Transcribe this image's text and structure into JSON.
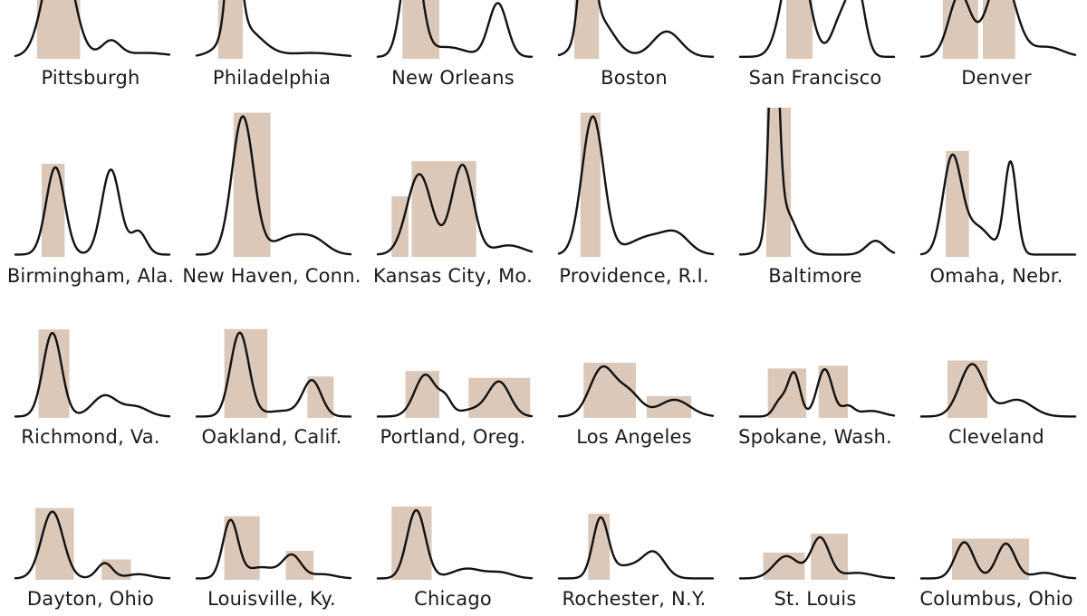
{
  "chart_data": {
    "type": "small-multiples-line",
    "x_domain": [
      0,
      100
    ],
    "y_domain": [
      0,
      100
    ],
    "colors": {
      "band": "#dcc8b8",
      "line": "#111111",
      "text": "#1a1a1a"
    },
    "panels": [
      {
        "label": "Pittsburgh",
        "peaks": [
          [
            28,
            9,
            120
          ],
          [
            62,
            6,
            16
          ],
          [
            85,
            14,
            4
          ]
        ],
        "bands": [
          [
            14,
            42
          ]
        ]
      },
      {
        "label": "Philadelphia",
        "peaks": [
          [
            24,
            4,
            130
          ],
          [
            30,
            12,
            30
          ],
          [
            75,
            15,
            4
          ]
        ],
        "bands": [
          [
            14,
            30
          ]
        ]
      },
      {
        "label": "New Orleans",
        "peaks": [
          [
            22,
            6,
            120
          ],
          [
            45,
            12,
            10
          ],
          [
            78,
            6,
            55
          ]
        ],
        "bands": [
          [
            16,
            40
          ]
        ]
      },
      {
        "label": "Boston",
        "peaks": [
          [
            18,
            4,
            130
          ],
          [
            25,
            10,
            40
          ],
          [
            70,
            9,
            26
          ]
        ],
        "bands": [
          [
            10,
            26
          ]
        ]
      },
      {
        "label": "San Francisco",
        "peaks": [
          [
            36,
            8,
            115
          ],
          [
            66,
            6,
            40
          ],
          [
            76,
            5,
            68
          ]
        ],
        "bands": [
          [
            30,
            47
          ]
        ]
      },
      {
        "label": "Denver",
        "peaks": [
          [
            25,
            7,
            64
          ],
          [
            52,
            9,
            85
          ],
          [
            82,
            10,
            10
          ]
        ],
        "bands": [
          [
            14,
            37
          ],
          [
            40,
            61
          ]
        ]
      },
      {
        "label": "Birmingham, Ala.",
        "peaks": [
          [
            26,
            6,
            76
          ],
          [
            62,
            6,
            74
          ],
          [
            80,
            5,
            20
          ]
        ],
        "bands": [
          [
            17,
            32
          ]
        ]
      },
      {
        "label": "New Haven, Conn.",
        "peaks": [
          [
            30,
            7,
            120
          ],
          [
            62,
            12,
            16
          ],
          [
            78,
            8,
            8
          ]
        ],
        "bands": [
          [
            24,
            48
          ]
        ]
      },
      {
        "label": "Kansas City, Mo.",
        "peaks": [
          [
            27,
            8,
            70
          ],
          [
            55,
            7,
            78
          ],
          [
            85,
            10,
            8
          ]
        ],
        "bands": [
          [
            9,
            20
          ],
          [
            22,
            64
          ]
        ]
      },
      {
        "label": "Providence, R.I.",
        "peaks": [
          [
            22,
            7,
            120
          ],
          [
            60,
            14,
            16
          ],
          [
            77,
            8,
            12
          ]
        ],
        "bands": [
          [
            14,
            27
          ]
        ]
      },
      {
        "label": "Baltimore",
        "peaks": [
          [
            22,
            3,
            200
          ],
          [
            28,
            8,
            40
          ],
          [
            88,
            6,
            12
          ]
        ],
        "bands": [
          [
            17,
            33
          ]
        ]
      },
      {
        "label": "Omaha, Nebr.",
        "peaks": [
          [
            20,
            6,
            82
          ],
          [
            36,
            9,
            24
          ],
          [
            58,
            4,
            80
          ]
        ],
        "bands": [
          [
            16,
            31
          ]
        ]
      },
      {
        "label": "Richmond, Va.",
        "peaks": [
          [
            24,
            6,
            120
          ],
          [
            58,
            8,
            30
          ],
          [
            78,
            8,
            14
          ]
        ],
        "bands": [
          [
            15,
            35
          ]
        ]
      },
      {
        "label": "Oakland, Calif.",
        "peaks": [
          [
            28,
            6,
            120
          ],
          [
            75,
            6,
            50
          ],
          [
            56,
            12,
            8
          ]
        ],
        "bands": [
          [
            18,
            46
          ],
          [
            72,
            89
          ]
        ]
      },
      {
        "label": "Portland, Oreg.",
        "peaks": [
          [
            31,
            7,
            60
          ],
          [
            44,
            4,
            20
          ],
          [
            79,
            7,
            48
          ],
          [
            62,
            10,
            10
          ]
        ],
        "bands": [
          [
            18,
            40
          ],
          [
            59,
            99
          ]
        ]
      },
      {
        "label": "Los Angeles",
        "peaks": [
          [
            28,
            8,
            68
          ],
          [
            45,
            8,
            34
          ],
          [
            75,
            10,
            24
          ]
        ],
        "bands": [
          [
            16,
            50
          ],
          [
            57,
            86
          ]
        ]
      },
      {
        "label": "Spokane, Wash.",
        "peaks": [
          [
            26,
            4,
            22
          ],
          [
            35,
            4,
            62
          ],
          [
            55,
            5,
            68
          ],
          [
            70,
            4,
            14
          ],
          [
            85,
            8,
            8
          ]
        ],
        "bands": [
          [
            18,
            43
          ],
          [
            51,
            70
          ]
        ]
      },
      {
        "label": "Cleveland",
        "peaks": [
          [
            33,
            8,
            75
          ],
          [
            62,
            10,
            24
          ]
        ],
        "bands": [
          [
            17,
            43
          ]
        ]
      },
      {
        "label": "Dayton, Ohio",
        "peaks": [
          [
            24,
            7,
            96
          ],
          [
            58,
            5,
            22
          ],
          [
            80,
            8,
            6
          ]
        ],
        "bands": [
          [
            13,
            38
          ],
          [
            56,
            75
          ]
        ]
      },
      {
        "label": "Louisville, Ky.",
        "peaks": [
          [
            22,
            5,
            82
          ],
          [
            42,
            10,
            16
          ],
          [
            62,
            6,
            32
          ],
          [
            82,
            8,
            6
          ]
        ],
        "bands": [
          [
            18,
            41
          ],
          [
            58,
            76
          ]
        ]
      },
      {
        "label": "Chicago",
        "peaks": [
          [
            25,
            6,
            98
          ],
          [
            58,
            10,
            14
          ],
          [
            80,
            8,
            8
          ]
        ],
        "bands": [
          [
            9,
            35
          ]
        ]
      },
      {
        "label": "Rochester, N.Y.",
        "peaks": [
          [
            27,
            5,
            82
          ],
          [
            45,
            12,
            18
          ],
          [
            62,
            7,
            32
          ]
        ],
        "bands": [
          [
            19,
            33
          ]
        ]
      },
      {
        "label": "St. Louis",
        "peaks": [
          [
            30,
            8,
            32
          ],
          [
            52,
            6,
            58
          ],
          [
            76,
            10,
            8
          ]
        ],
        "bands": [
          [
            15,
            42
          ],
          [
            46,
            70
          ]
        ]
      },
      {
        "label": "Columbus, Ohio",
        "peaks": [
          [
            28,
            6,
            52
          ],
          [
            55,
            6,
            50
          ],
          [
            80,
            8,
            8
          ]
        ],
        "bands": [
          [
            20,
            70
          ]
        ]
      }
    ]
  }
}
